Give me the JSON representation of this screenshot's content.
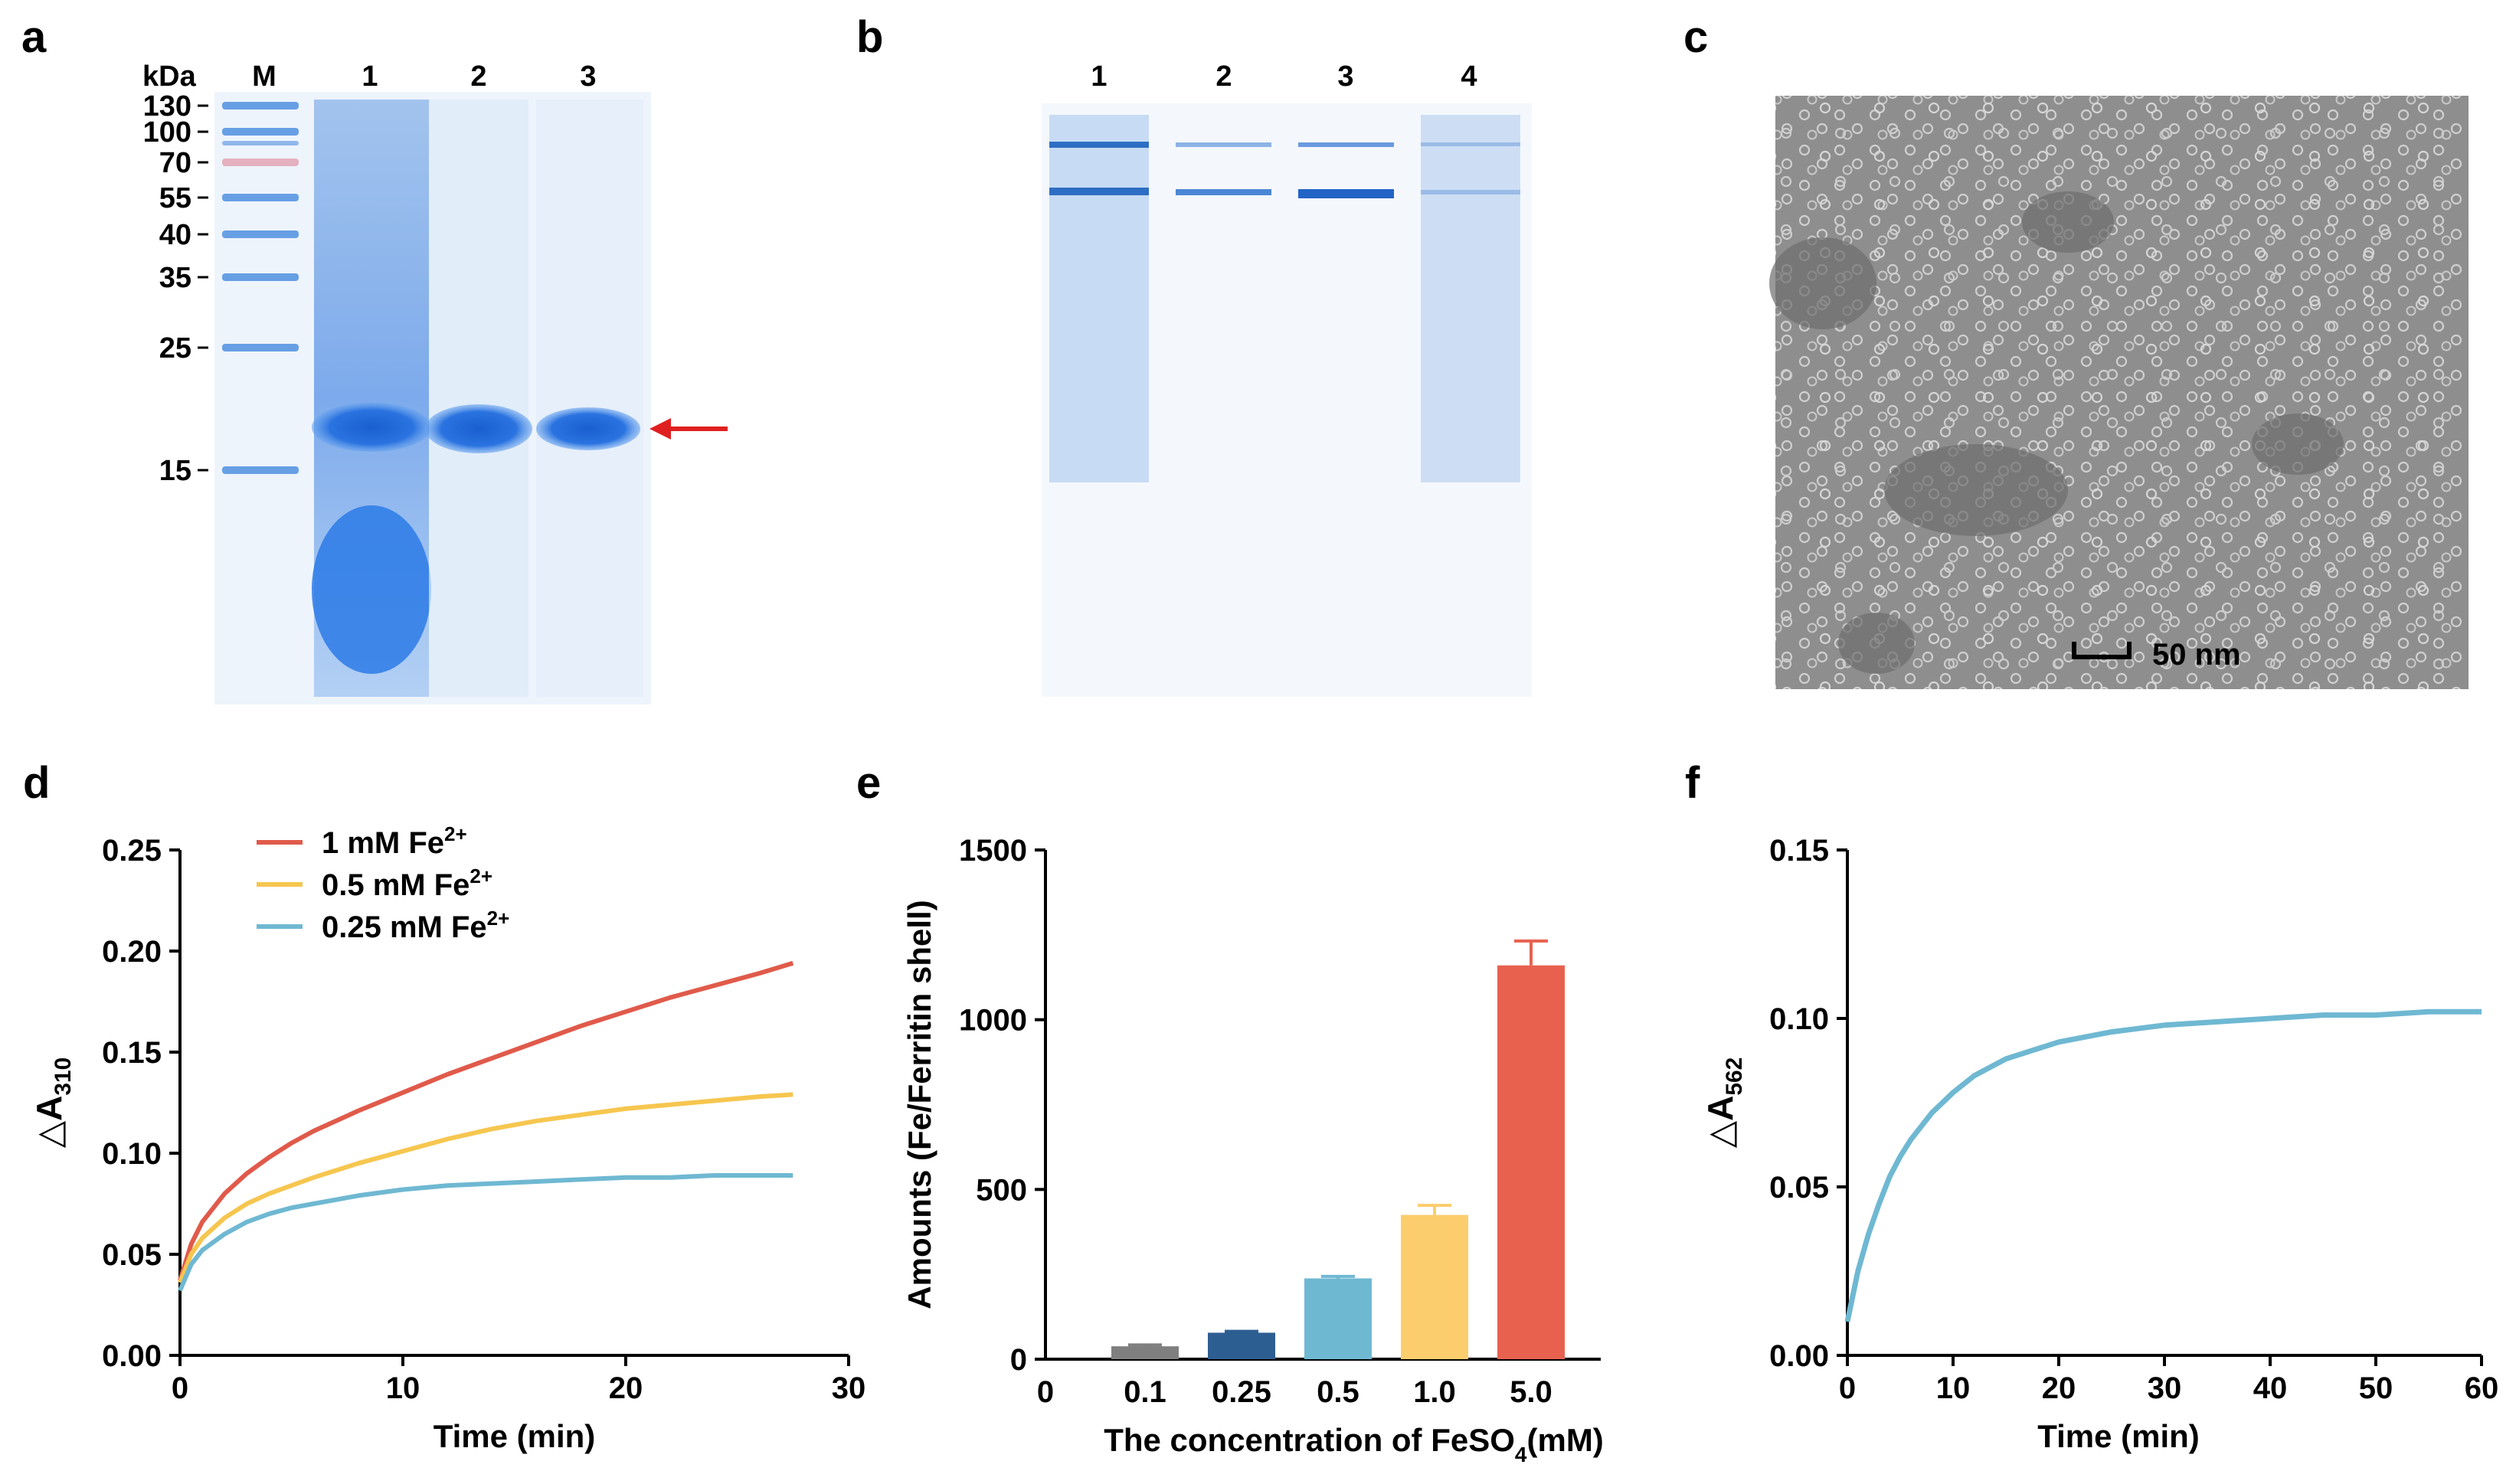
{
  "panels": {
    "a": {
      "letter": "a",
      "header_kda": "kDa",
      "lane_labels": [
        "M",
        "1",
        "2",
        "3"
      ],
      "marker_kda": [
        "130",
        "100",
        "70",
        "55",
        "40",
        "35",
        "25",
        "15"
      ],
      "arrow_color": "#e02020"
    },
    "b": {
      "letter": "b",
      "lane_labels": [
        "1",
        "2",
        "3",
        "4"
      ]
    },
    "c": {
      "letter": "c",
      "scale_bar": "50 nm"
    },
    "d": {
      "letter": "d"
    },
    "e": {
      "letter": "e"
    },
    "f": {
      "letter": "f"
    }
  },
  "chart_data": [
    {
      "panel": "d",
      "type": "line",
      "xlabel": "Time (min)",
      "ylabel": "△A",
      "ylabel_sub": "310",
      "xlim": [
        0,
        30
      ],
      "ylim": [
        0,
        0.25
      ],
      "xticks": [
        "0",
        "10",
        "20",
        "30"
      ],
      "yticks": [
        "0.00",
        "0.05",
        "0.10",
        "0.15",
        "0.20",
        "0.25"
      ],
      "legend_position": "top-left",
      "series": [
        {
          "name": "1 mM Fe",
          "name_sup": "2+",
          "color": "#e05a4a",
          "x": [
            0,
            0.5,
            1,
            2,
            3,
            4,
            5,
            6,
            8,
            10,
            12,
            14,
            16,
            18,
            20,
            22,
            24,
            26,
            27.5
          ],
          "y": [
            0.037,
            0.055,
            0.066,
            0.08,
            0.09,
            0.098,
            0.105,
            0.111,
            0.121,
            0.13,
            0.139,
            0.147,
            0.155,
            0.163,
            0.17,
            0.177,
            0.183,
            0.189,
            0.194
          ]
        },
        {
          "name": "0.5 mM Fe",
          "name_sup": "2+",
          "color": "#f6c64f",
          "x": [
            0,
            0.5,
            1,
            2,
            3,
            4,
            5,
            6,
            8,
            10,
            12,
            14,
            16,
            18,
            20,
            22,
            24,
            26,
            27.5
          ],
          "y": [
            0.036,
            0.05,
            0.058,
            0.068,
            0.075,
            0.08,
            0.084,
            0.088,
            0.095,
            0.101,
            0.107,
            0.112,
            0.116,
            0.119,
            0.122,
            0.124,
            0.126,
            0.128,
            0.129
          ]
        },
        {
          "name": "0.25 mM Fe",
          "name_sup": "2+",
          "color": "#6fb8d2",
          "x": [
            0,
            0.5,
            1,
            2,
            3,
            4,
            5,
            6,
            8,
            10,
            12,
            14,
            16,
            18,
            20,
            22,
            24,
            26,
            27.5
          ],
          "y": [
            0.032,
            0.045,
            0.052,
            0.06,
            0.066,
            0.07,
            0.073,
            0.075,
            0.079,
            0.082,
            0.084,
            0.085,
            0.086,
            0.087,
            0.088,
            0.088,
            0.089,
            0.089,
            0.089
          ]
        }
      ]
    },
    {
      "panel": "e",
      "type": "bar",
      "xlabel": "The concentration of FeSO",
      "xlabel_sub": "4",
      "xlabel_unit": "(mM)",
      "ylabel": "Amounts (Fe/Ferritin shell)",
      "ylim": [
        0,
        1500
      ],
      "yticks": [
        "0",
        "500",
        "1000",
        "1500"
      ],
      "x_zero_label": "0",
      "categories": [
        "0.1",
        "0.25",
        "0.5",
        "1.0",
        "5.0"
      ],
      "values": [
        38,
        78,
        238,
        425,
        1160
      ],
      "errors": [
        4,
        4,
        6,
        28,
        72
      ],
      "colors": [
        "#7f7f7f",
        "#2d5e92",
        "#6fb8d2",
        "#fccd6c",
        "#e8614f"
      ]
    },
    {
      "panel": "f",
      "type": "line",
      "xlabel": "Time (min)",
      "ylabel": "△A",
      "ylabel_sub": "562",
      "xlim": [
        0,
        60
      ],
      "ylim": [
        0,
        0.15
      ],
      "xticks": [
        "0",
        "10",
        "20",
        "30",
        "40",
        "50",
        "60"
      ],
      "yticks": [
        "0.00",
        "0.05",
        "0.10",
        "0.15"
      ],
      "series": [
        {
          "color": "#6fb8d2",
          "x": [
            0,
            1,
            2,
            3,
            4,
            5,
            6,
            8,
            10,
            12,
            15,
            18,
            20,
            25,
            30,
            35,
            40,
            45,
            50,
            55,
            60
          ],
          "y": [
            0.01,
            0.025,
            0.036,
            0.045,
            0.053,
            0.059,
            0.064,
            0.072,
            0.078,
            0.083,
            0.088,
            0.091,
            0.093,
            0.096,
            0.098,
            0.099,
            0.1,
            0.101,
            0.101,
            0.102,
            0.102
          ]
        }
      ]
    }
  ]
}
